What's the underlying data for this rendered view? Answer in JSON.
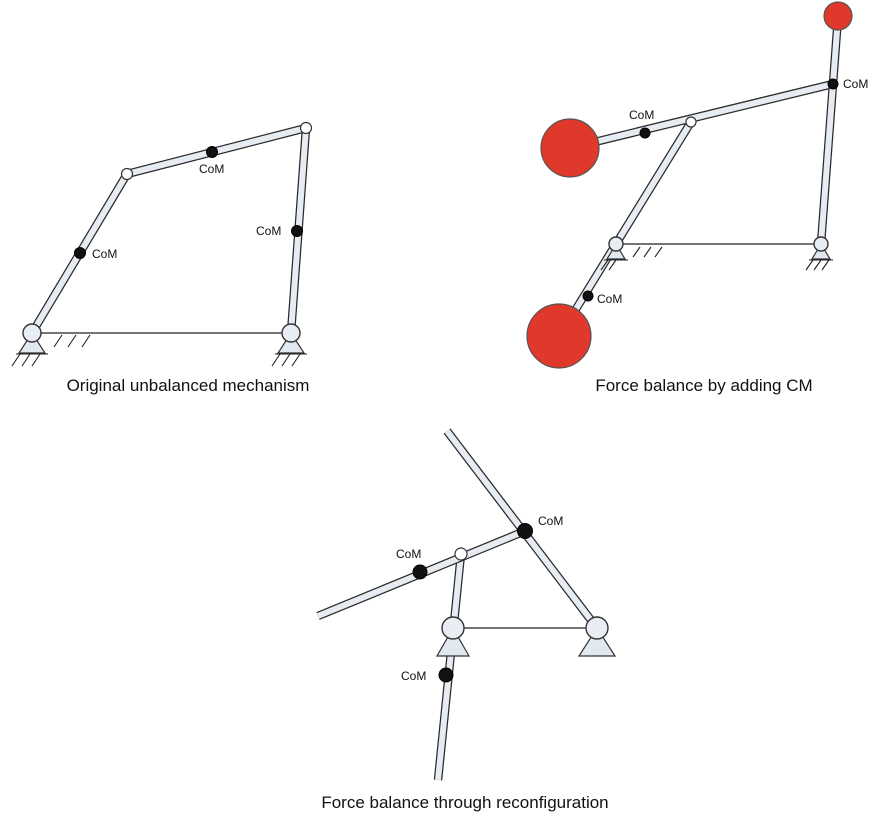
{
  "labels": {
    "com": "CoM"
  },
  "captions": {
    "original": "Original unbalanced mechanism",
    "counter_mass": "Force balance by adding CM",
    "reconfiguration": "Force balance through reconfiguration"
  },
  "colors": {
    "counter_mass": "#e0392b",
    "link_fill": "#e7ecf3",
    "outline": "#2a2a2a"
  }
}
